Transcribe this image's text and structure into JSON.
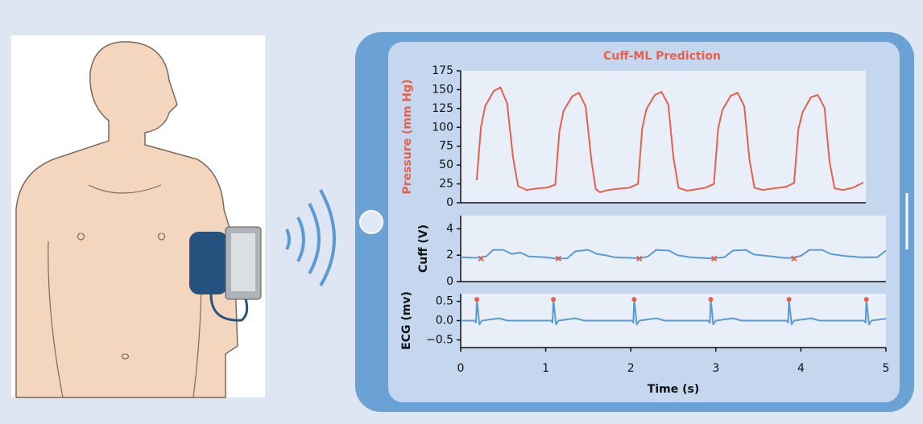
{
  "chart_data": [
    {
      "type": "line",
      "title": "Cuff-ML Prediction",
      "title_color": "#e8604c",
      "ylabel": "Pressure (mm Hg)",
      "ylabel_color": "#e8604c",
      "x": [
        0.19,
        0.24,
        0.29,
        0.39,
        0.47,
        0.55,
        0.62,
        0.68,
        0.78,
        0.9,
        1.02,
        1.12,
        1.17,
        1.22,
        1.32,
        1.4,
        1.48,
        1.55,
        1.6,
        1.65,
        1.75,
        1.9,
        2.0,
        2.1,
        2.15,
        2.2,
        2.3,
        2.38,
        2.46,
        2.52,
        2.58,
        2.68,
        2.8,
        2.9,
        3.0,
        3.05,
        3.1,
        3.2,
        3.28,
        3.36,
        3.42,
        3.48,
        3.58,
        3.7,
        3.85,
        3.95,
        4.0,
        4.05,
        4.15,
        4.23,
        4.31,
        4.37,
        4.43,
        4.53,
        4.65,
        4.77
      ],
      "series": [
        {
          "color": "#e8604c",
          "values": [
            30,
            100,
            128,
            148,
            153,
            132,
            60,
            22,
            17,
            19,
            20,
            24,
            95,
            122,
            141,
            146,
            128,
            55,
            18,
            14,
            17,
            19,
            20,
            25,
            98,
            124,
            143,
            147,
            130,
            60,
            20,
            16,
            18,
            20,
            25,
            98,
            123,
            142,
            146,
            128,
            58,
            20,
            17,
            19,
            21,
            26,
            97,
            120,
            140,
            143,
            126,
            55,
            19,
            17,
            20,
            27
          ]
        }
      ],
      "xlim": [
        0,
        4.8
      ],
      "ylim": [
        0,
        175
      ],
      "yticks": [
        0,
        25,
        50,
        75,
        100,
        125,
        150,
        175
      ]
    },
    {
      "type": "line",
      "ylabel": "Cuff (V)",
      "x": [
        0,
        0.2,
        0.3,
        0.38,
        0.5,
        0.6,
        0.7,
        0.8,
        1.0,
        1.1,
        1.25,
        1.35,
        1.5,
        1.6,
        1.7,
        1.8,
        2.0,
        2.1,
        2.2,
        2.3,
        2.45,
        2.55,
        2.7,
        2.95,
        3.1,
        3.2,
        3.35,
        3.45,
        3.6,
        3.8,
        3.9,
        4.0,
        4.1,
        4.25,
        4.35,
        4.5,
        4.7,
        4.9,
        5.0
      ],
      "series": [
        {
          "color": "#5b9bd5",
          "values": [
            1.85,
            1.8,
            1.9,
            2.4,
            2.4,
            2.1,
            2.2,
            1.9,
            1.85,
            1.75,
            1.75,
            2.3,
            2.4,
            2.1,
            2.0,
            1.85,
            1.8,
            1.75,
            1.9,
            2.4,
            2.35,
            2.0,
            1.85,
            1.75,
            1.85,
            2.35,
            2.4,
            2.05,
            1.95,
            1.8,
            1.8,
            1.95,
            2.4,
            2.4,
            2.1,
            1.95,
            1.85,
            1.85,
            2.35
          ]
        },
        {
          "color": "#e8604c",
          "marker": "x",
          "x": [
            0.24,
            1.15,
            2.1,
            2.98,
            3.92
          ],
          "values": [
            1.75,
            1.75,
            1.75,
            1.75,
            1.75
          ]
        }
      ],
      "xlim": [
        0,
        5
      ],
      "ylim": [
        0,
        5
      ],
      "yticks": [
        0,
        2,
        4
      ]
    },
    {
      "type": "line",
      "ylabel": "ECG (mv)",
      "xlabel": "Time (s)",
      "x": [
        0,
        0.16,
        0.18,
        0.19,
        0.22,
        0.25,
        0.45,
        0.55,
        1.06,
        1.08,
        1.09,
        1.12,
        1.15,
        1.35,
        1.45,
        2.01,
        2.03,
        2.04,
        2.07,
        2.1,
        2.3,
        2.4,
        2.91,
        2.93,
        2.94,
        2.97,
        3.0,
        3.2,
        3.3,
        3.83,
        3.85,
        3.86,
        3.89,
        3.92,
        4.12,
        4.22,
        4.74,
        4.76,
        4.77,
        4.8,
        4.83,
        5.0
      ],
      "series": [
        {
          "color": "#5b9bd5",
          "values": [
            0,
            0,
            -0.05,
            0.55,
            -0.1,
            0,
            0.06,
            0,
            0,
            -0.05,
            0.55,
            -0.1,
            0,
            0.06,
            0,
            0,
            -0.05,
            0.55,
            -0.1,
            0,
            0.06,
            0,
            0,
            -0.05,
            0.55,
            -0.1,
            0,
            0.06,
            0,
            0,
            -0.05,
            0.55,
            -0.1,
            0,
            0.06,
            0,
            0,
            -0.05,
            0.55,
            -0.1,
            0,
            0.05
          ]
        },
        {
          "color": "#e8604c",
          "marker": "dot",
          "x": [
            0.19,
            1.09,
            2.04,
            2.94,
            3.86,
            4.77
          ],
          "values": [
            0.55,
            0.55,
            0.55,
            0.55,
            0.55,
            0.55
          ]
        }
      ],
      "xlim": [
        0,
        5
      ],
      "ylim": [
        -0.7,
        0.7
      ],
      "yticks": [
        {
          "value": -0.5,
          "label": "−0.5"
        },
        {
          "value": 0,
          "label": "0.0"
        },
        {
          "value": 0.5,
          "label": "0.5"
        }
      ],
      "xticks": [
        0,
        1,
        2,
        3,
        4,
        5
      ]
    }
  ]
}
